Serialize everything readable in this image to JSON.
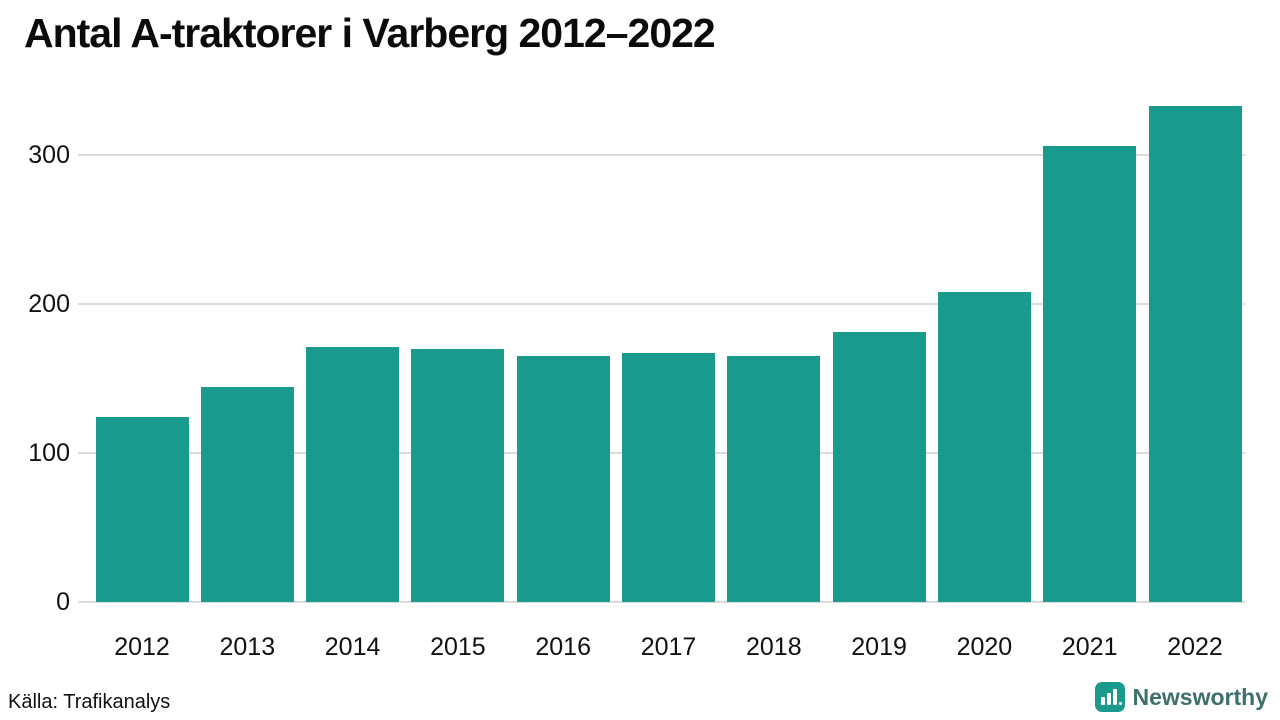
{
  "title": "Antal A-traktorer i Varberg 2012–2022",
  "source": "Källa: Trafikanalys",
  "brand": {
    "name": "Newsworthy",
    "logo_icon": "bar-chart-icon"
  },
  "colors": {
    "bar": "#1a9a8c",
    "brand_icon": "#1a9a8c",
    "brand_text": "#3f6f6c",
    "grid": "#dcdcdc",
    "text": "#111111"
  },
  "chart_data": {
    "type": "bar",
    "title": "Antal A-traktorer i Varberg 2012–2022",
    "categories": [
      "2012",
      "2013",
      "2014",
      "2015",
      "2016",
      "2017",
      "2018",
      "2019",
      "2020",
      "2021",
      "2022"
    ],
    "values": [
      124,
      144,
      171,
      170,
      165,
      167,
      165,
      181,
      208,
      306,
      333
    ],
    "xlabel": "",
    "ylabel": "",
    "ylim": [
      0,
      340
    ],
    "yticks": [
      0,
      100,
      200,
      300
    ],
    "grid": true,
    "legend": "none",
    "source": "Källa: Trafikanalys"
  }
}
